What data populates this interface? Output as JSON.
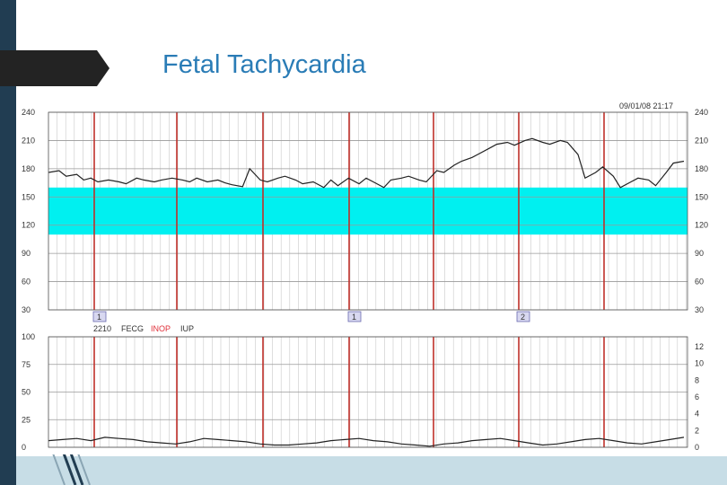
{
  "slide": {
    "title": "Fetal Tachycardia"
  },
  "chart_data": [
    {
      "type": "line",
      "title": "",
      "panel": "fetal-heart-rate",
      "ylim": [
        30,
        240
      ],
      "yticks_left": [
        "240",
        "210",
        "180",
        "150",
        "120",
        "90",
        "60",
        "30"
      ],
      "yticks_right": [
        "240",
        "210",
        "180",
        "150",
        "120",
        "90",
        "60",
        "30"
      ],
      "normal_band": [
        110,
        160
      ],
      "header_text": "09/01/08 21:17",
      "event_markers": [
        "1",
        "1",
        "2"
      ],
      "x": [
        0,
        3,
        5,
        8,
        10,
        12,
        14,
        17,
        20,
        22,
        25,
        27,
        30,
        32,
        35,
        38,
        40,
        42,
        45,
        48,
        50,
        52,
        55,
        57,
        60,
        62,
        65,
        67,
        70,
        72,
        75,
        78,
        80,
        82,
        85,
        88,
        90,
        92,
        95,
        97,
        100,
        102,
        105,
        107,
        110,
        112,
        115,
        117,
        120,
        122,
        125,
        127,
        130,
        132,
        135,
        137,
        140,
        142,
        145,
        147,
        150,
        152,
        155,
        157,
        160,
        162,
        165,
        167,
        170,
        172,
        175,
        177,
        180
      ],
      "y": [
        176,
        178,
        172,
        174,
        168,
        170,
        166,
        168,
        166,
        164,
        170,
        168,
        166,
        168,
        170,
        168,
        166,
        170,
        166,
        168,
        165,
        163,
        161,
        180,
        168,
        166,
        170,
        172,
        168,
        164,
        166,
        160,
        168,
        162,
        170,
        164,
        170,
        166,
        160,
        168,
        170,
        172,
        168,
        166,
        178,
        176,
        184,
        188,
        192,
        196,
        202,
        206,
        208,
        205,
        210,
        212,
        208,
        206,
        210,
        208,
        195,
        170,
        176,
        182,
        172,
        160,
        166,
        170,
        168,
        162,
        176,
        186,
        188
      ],
      "series": [
        {
          "name": "FECG"
        }
      ]
    },
    {
      "type": "line",
      "title": "",
      "panel": "uterine-activity",
      "ylim": [
        0,
        100
      ],
      "yticks_left": [
        "100",
        "75",
        "50",
        "25",
        "0"
      ],
      "yticks_right": [
        "12",
        "10",
        "8",
        "6",
        "4",
        "2",
        "0"
      ],
      "x": [
        0,
        4,
        8,
        12,
        16,
        20,
        24,
        28,
        32,
        36,
        40,
        44,
        48,
        52,
        56,
        60,
        64,
        68,
        72,
        76,
        80,
        84,
        88,
        92,
        96,
        100,
        104,
        108,
        112,
        116,
        120,
        124,
        128,
        132,
        136,
        140,
        144,
        148,
        152,
        156,
        160,
        164,
        168,
        172,
        176,
        180
      ],
      "y": [
        6,
        7,
        8,
        6,
        9,
        8,
        7,
        5,
        4,
        3,
        5,
        8,
        7,
        6,
        5,
        3,
        2,
        2,
        3,
        4,
        6,
        7,
        8,
        6,
        5,
        3,
        2,
        1,
        3,
        4,
        6,
        7,
        8,
        6,
        4,
        2,
        3,
        5,
        7,
        8,
        6,
        4,
        3,
        5,
        7,
        9
      ],
      "series": [
        {
          "name": "IUP"
        }
      ]
    }
  ],
  "panel_labels": {
    "code": "2210",
    "fecg": "FECG",
    "incp": "INOP",
    "iup": "IUP"
  },
  "colors": {
    "normal_band": "#00f0f0",
    "period_line": "#c0302a",
    "grid": "#c8c8c8",
    "trace": "#222222",
    "title": "#2a7cb6",
    "incp": "#e0303a"
  }
}
